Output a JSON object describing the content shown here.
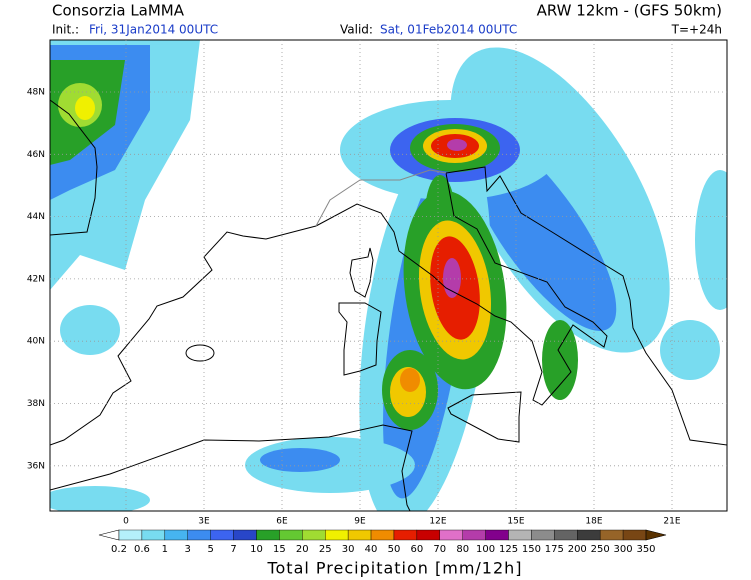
{
  "header": {
    "title": "Consorzia LaMMA",
    "model": "ARW 12km - (GFS 50km)",
    "init_label": "Init.:",
    "init_value": "Fri, 31Jan2014 00UTC",
    "valid_label": "Valid:",
    "valid_value": "Sat, 01Feb2014 00UTC",
    "lead_time": "T=+24h"
  },
  "map": {
    "lat_labels": [
      "48N",
      "46N",
      "44N",
      "42N",
      "40N",
      "38N",
      "36N"
    ],
    "lon_labels": [
      "0",
      "3E",
      "6E",
      "9E",
      "12E",
      "15E",
      "18E",
      "21E"
    ]
  },
  "colorbar": {
    "labels": [
      "0.2",
      "0.6",
      "1",
      "3",
      "5",
      "7",
      "10",
      "15",
      "20",
      "25",
      "30",
      "40",
      "50",
      "60",
      "70",
      "80",
      "100",
      "125",
      "150",
      "175",
      "200",
      "250",
      "300",
      "350"
    ],
    "colors": [
      "#b4f0fa",
      "#78dcf0",
      "#46b4f0",
      "#3c8cf0",
      "#3c64f0",
      "#2846c8",
      "#28a028",
      "#64c832",
      "#a0dc32",
      "#f0f000",
      "#f0c800",
      "#f08c00",
      "#e61e00",
      "#c80000",
      "#e070c8",
      "#b43caa",
      "#82008c",
      "#b4b4b4",
      "#8c8c8c",
      "#646464",
      "#3c3c3c",
      "#966428",
      "#784614"
    ],
    "under_color": "#ffffff",
    "over_color": "#5a3200",
    "title": "Total Precipitation [mm/12h]"
  }
}
